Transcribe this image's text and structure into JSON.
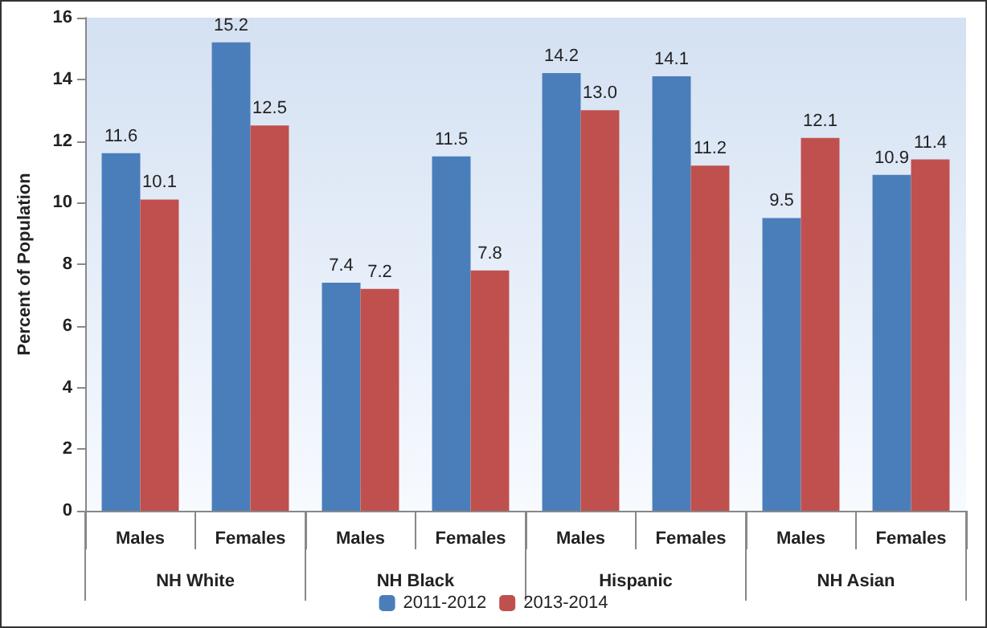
{
  "chart_data": {
    "type": "bar",
    "ylabel": "Percent of Population",
    "categories": [
      "Males",
      "Females",
      "Males",
      "Females",
      "Males",
      "Females",
      "Males",
      "Females"
    ],
    "annotations": [
      "NH White",
      "NH Black",
      "Hispanic",
      "NH Asian"
    ],
    "series": [
      {
        "name": "2011-2012",
        "color": "#4a7ebb",
        "values": [
          11.6,
          15.2,
          7.4,
          11.5,
          14.2,
          14.1,
          9.5,
          10.9
        ],
        "value_labels": [
          "11.6",
          "15.2",
          "7.4",
          "11.5",
          "14.2",
          "14.1",
          "9.5",
          "10.9"
        ]
      },
      {
        "name": "2013-2014",
        "color": "#c0504d",
        "values": [
          10.1,
          12.5,
          7.2,
          7.8,
          13.0,
          11.2,
          12.1,
          11.4
        ],
        "value_labels": [
          "10.1",
          "12.5",
          "7.2",
          "7.8",
          "13.0",
          "11.2",
          "12.1",
          "11.4"
        ]
      }
    ],
    "ylim": [
      0,
      16
    ],
    "yticks": [
      0,
      2,
      4,
      6,
      8,
      10,
      12,
      14,
      16
    ],
    "grid": false,
    "legend": "bottom"
  }
}
